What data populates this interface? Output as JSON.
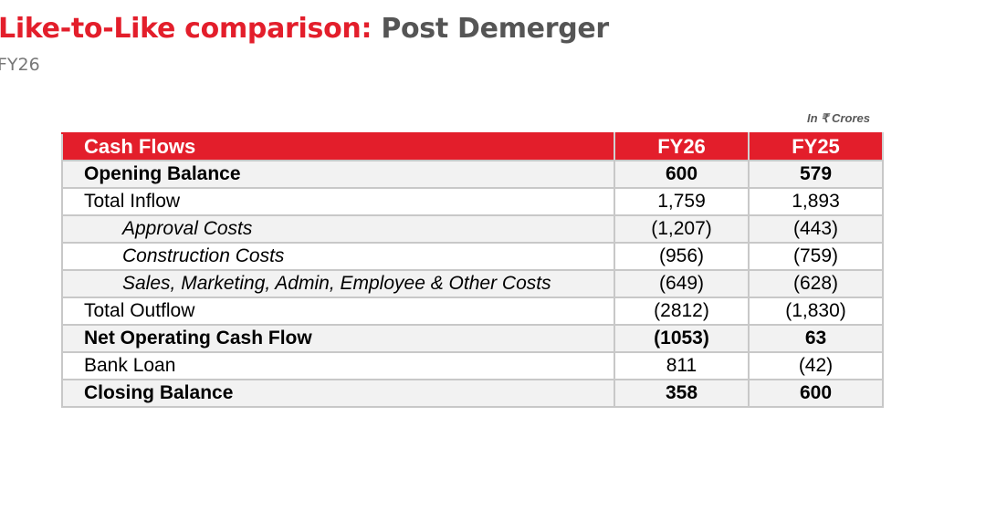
{
  "header": {
    "title_accent": "Like-to-Like comparison:",
    "title_rest": "Post Demerger",
    "subtitle": "FY26",
    "unit_note": "In ₹ Crores"
  },
  "table": {
    "columns": [
      "Cash Flows",
      "FY26",
      "FY25"
    ],
    "rows": [
      {
        "label": "Opening Balance",
        "fy26": "600",
        "fy25": "579",
        "style": "bold"
      },
      {
        "label": "Total Inflow",
        "fy26": "1,759",
        "fy25": "1,893",
        "style": "normal"
      },
      {
        "label": "Approval Costs",
        "fy26": "(1,207)",
        "fy25": "(443)",
        "style": "sub"
      },
      {
        "label": "Construction Costs",
        "fy26": "(956)",
        "fy25": "(759)",
        "style": "sub"
      },
      {
        "label": "Sales, Marketing, Admin, Employee & Other Costs",
        "fy26": "(649)",
        "fy25": "(628)",
        "style": "sub"
      },
      {
        "label": "Total Outflow",
        "fy26": "(2812)",
        "fy25": "(1,830)",
        "style": "normal"
      },
      {
        "label": "Net Operating Cash Flow",
        "fy26": "(1053)",
        "fy25": "63",
        "style": "bold"
      },
      {
        "label": "Bank Loan",
        "fy26": "811",
        "fy25": "(42)",
        "style": "normal"
      },
      {
        "label": "Closing Balance",
        "fy26": "358",
        "fy25": "600",
        "style": "bold"
      }
    ]
  },
  "colors": {
    "accent": "#e31e2b",
    "title_grey": "#555555",
    "border": "#c8c8c8",
    "row_shade": "#f2f2f2"
  }
}
